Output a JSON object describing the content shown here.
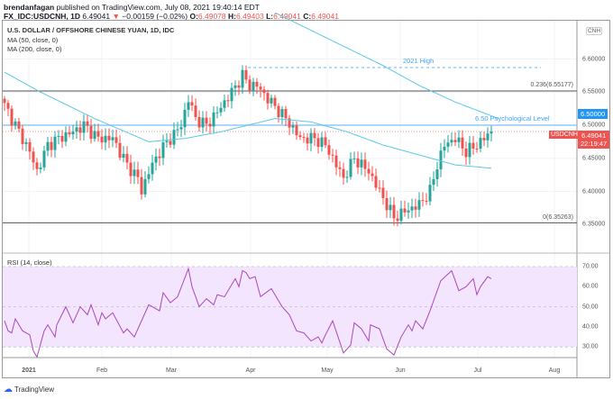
{
  "header": {
    "publisher": "brendanfagan",
    "published_text": "published on TradingView.com, July 08, 2021 19:40:14 EDT",
    "symbol": "FX_IDC:USDCNH, 1D",
    "last": "6.49041",
    "change": "−0.00159 (−0.02%)",
    "o_label": "O:",
    "o": "6.49078",
    "h_label": "H:",
    "h": "6.49403",
    "l_label": "L:",
    "l": "6.49041",
    "c_label": "C:",
    "c": "6.49041"
  },
  "legend": {
    "title": "U.S. DOLLAR / OFFSHORE CHINESE YUAN, 1D, IDC",
    "ma1": "MA (50, close, 0)",
    "ma2": "MA (200, close, 0)",
    "rsi": "RSI (14, close)"
  },
  "annotations": {
    "high": "2021 High",
    "fib236": "0.236(6.55177)",
    "fib0": "0(6.35263)",
    "psych": "6.50 Psychological Level",
    "currency": "CNH"
  },
  "price_labels": {
    "level": "6.50000",
    "symbol": "USDCNH",
    "price": "6.49041",
    "countdown": "22:19:47"
  },
  "footer": {
    "brand": "TradingView"
  },
  "colors": {
    "up": "#26a69a",
    "down": "#ef5350",
    "ma": "#5bc8e6",
    "rsi": "#ab47bc",
    "rsi_band": "#f3e5fd"
  },
  "chart_data": {
    "type": "candlestick",
    "price_axis": {
      "ticks": [
        "6.60000",
        "6.55000",
        "6.50000",
        "6.45000",
        "6.40000",
        "6.35000"
      ],
      "range": [
        6.338,
        6.7
      ]
    },
    "time_axis": [
      "2021",
      "Feb",
      "Mar",
      "Apr",
      "May",
      "Jun",
      "Jul",
      "Aug"
    ],
    "levels": {
      "high_2021": 6.587,
      "fib236": 6.55177,
      "fib0": 6.35263,
      "psych": 6.5
    },
    "close_keypoints": [
      [
        0,
        6.53
      ],
      [
        3,
        6.5
      ],
      [
        7,
        6.46
      ],
      [
        9,
        6.43
      ],
      [
        12,
        6.47
      ],
      [
        15,
        6.48
      ],
      [
        19,
        6.49
      ],
      [
        22,
        6.5
      ],
      [
        26,
        6.48
      ],
      [
        30,
        6.48
      ],
      [
        34,
        6.44
      ],
      [
        37,
        6.42
      ],
      [
        38,
        6.4
      ],
      [
        40,
        6.43
      ],
      [
        43,
        6.46
      ],
      [
        46,
        6.48
      ],
      [
        49,
        6.5
      ],
      [
        51,
        6.54
      ],
      [
        53,
        6.51
      ],
      [
        56,
        6.5
      ],
      [
        59,
        6.52
      ],
      [
        63,
        6.55
      ],
      [
        66,
        6.575
      ],
      [
        68,
        6.56
      ],
      [
        70,
        6.56
      ],
      [
        73,
        6.54
      ],
      [
        78,
        6.51
      ],
      [
        82,
        6.48
      ],
      [
        86,
        6.48
      ],
      [
        89,
        6.47
      ],
      [
        92,
        6.44
      ],
      [
        94,
        6.42
      ],
      [
        97,
        6.45
      ],
      [
        101,
        6.43
      ],
      [
        104,
        6.4
      ],
      [
        107,
        6.37
      ],
      [
        108,
        6.36
      ],
      [
        111,
        6.37
      ],
      [
        115,
        6.38
      ],
      [
        118,
        6.4
      ],
      [
        120,
        6.44
      ],
      [
        122,
        6.47
      ],
      [
        125,
        6.48
      ],
      [
        128,
        6.46
      ],
      [
        131,
        6.47
      ],
      [
        135,
        6.49041
      ]
    ],
    "ma50": [
      [
        0,
        6.58
      ],
      [
        10,
        6.55
      ],
      [
        25,
        6.51
      ],
      [
        40,
        6.475
      ],
      [
        50,
        6.48
      ],
      [
        60,
        6.49
      ],
      [
        75,
        6.51
      ],
      [
        85,
        6.505
      ],
      [
        95,
        6.49
      ],
      [
        105,
        6.47
      ],
      [
        115,
        6.455
      ],
      [
        125,
        6.44
      ],
      [
        135,
        6.435
      ]
    ],
    "ma200": [
      [
        75,
        6.67
      ],
      [
        90,
        6.63
      ],
      [
        105,
        6.59
      ],
      [
        115,
        6.56
      ],
      [
        125,
        6.535
      ],
      [
        137,
        6.51
      ]
    ],
    "rsi": {
      "ticks": [
        "70.00",
        "60.00",
        "50.00",
        "40.00",
        "30.00"
      ],
      "range": [
        20,
        75
      ],
      "values": [
        [
          0,
          43
        ],
        [
          1,
          38
        ],
        [
          2,
          37
        ],
        [
          3,
          44
        ],
        [
          5,
          38
        ],
        [
          7,
          36
        ],
        [
          8,
          28
        ],
        [
          9,
          25
        ],
        [
          11,
          38
        ],
        [
          12,
          41
        ],
        [
          14,
          35
        ],
        [
          14.5,
          41
        ],
        [
          17,
          50
        ],
        [
          19,
          42
        ],
        [
          21,
          50
        ],
        [
          23,
          46
        ],
        [
          24,
          51
        ],
        [
          26,
          41
        ],
        [
          27,
          47
        ],
        [
          28,
          44
        ],
        [
          30,
          47
        ],
        [
          33,
          37
        ],
        [
          34,
          39
        ],
        [
          36,
          35
        ],
        [
          38,
          43
        ],
        [
          40,
          51
        ],
        [
          41,
          50
        ],
        [
          43,
          48
        ],
        [
          44,
          57
        ],
        [
          46,
          52
        ],
        [
          48,
          55
        ],
        [
          51,
          69
        ],
        [
          52,
          60
        ],
        [
          54,
          50
        ],
        [
          56,
          54
        ],
        [
          58,
          51
        ],
        [
          59,
          56
        ],
        [
          61,
          55
        ],
        [
          64,
          64
        ],
        [
          65,
          60
        ],
        [
          66,
          68
        ],
        [
          67,
          67
        ],
        [
          68,
          64
        ],
        [
          69.5,
          65
        ],
        [
          71,
          55
        ],
        [
          74,
          59
        ],
        [
          77,
          50
        ],
        [
          79,
          46
        ],
        [
          81,
          38
        ],
        [
          83,
          37
        ],
        [
          85,
          33
        ],
        [
          87,
          35
        ],
        [
          88,
          32
        ],
        [
          89,
          36
        ],
        [
          91,
          43
        ],
        [
          94,
          27
        ],
        [
          96,
          31
        ],
        [
          97,
          42
        ],
        [
          99,
          39
        ],
        [
          101,
          33
        ],
        [
          101.5,
          41
        ],
        [
          104,
          39
        ],
        [
          105,
          34
        ],
        [
          106,
          29
        ],
        [
          108,
          26
        ],
        [
          110,
          35
        ],
        [
          112,
          41
        ],
        [
          113,
          38
        ],
        [
          114,
          43
        ],
        [
          116,
          39
        ],
        [
          118,
          48
        ],
        [
          120,
          58
        ],
        [
          121,
          63
        ],
        [
          124,
          68
        ],
        [
          126,
          58
        ],
        [
          128,
          60
        ],
        [
          130,
          64
        ],
        [
          131,
          56
        ],
        [
          132,
          60
        ],
        [
          134,
          65
        ],
        [
          135,
          64
        ]
      ]
    }
  }
}
